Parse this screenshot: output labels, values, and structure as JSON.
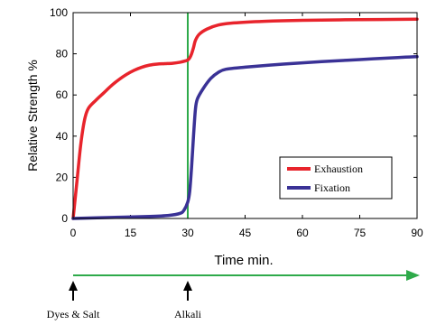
{
  "chart_data": {
    "type": "line",
    "xlabel": "Time min.",
    "ylabel": "Relative Strength %",
    "xlim": [
      0,
      90
    ],
    "ylim": [
      0,
      100
    ],
    "x_ticks": [
      0,
      15,
      30,
      45,
      60,
      75,
      90
    ],
    "y_ticks": [
      0,
      20,
      40,
      60,
      80,
      100
    ],
    "grid": false,
    "legend_position": "right-middle",
    "marker_line": {
      "x": 30,
      "color": "#2eaa4a"
    },
    "series": [
      {
        "name": "Exhaustion",
        "color": "#e8242c",
        "points": [
          [
            0,
            0
          ],
          [
            1,
            18
          ],
          [
            2,
            36
          ],
          [
            3,
            48
          ],
          [
            4,
            53.5
          ],
          [
            6,
            57.5
          ],
          [
            8,
            61
          ],
          [
            10,
            64.5
          ],
          [
            12,
            67.5
          ],
          [
            14,
            70
          ],
          [
            16,
            72
          ],
          [
            18,
            73.5
          ],
          [
            20,
            74.5
          ],
          [
            22,
            75
          ],
          [
            24,
            75.2
          ],
          [
            26,
            75.4
          ],
          [
            28,
            75.9
          ],
          [
            29.5,
            76.6
          ],
          [
            30,
            77
          ],
          [
            30.5,
            78
          ],
          [
            31,
            80
          ],
          [
            31.5,
            83
          ],
          [
            32,
            86.5
          ],
          [
            33,
            89.5
          ],
          [
            35,
            92
          ],
          [
            38,
            94
          ],
          [
            42,
            95
          ],
          [
            50,
            95.8
          ],
          [
            60,
            96.3
          ],
          [
            75,
            96.6
          ],
          [
            90,
            96.8
          ]
        ]
      },
      {
        "name": "Fixation",
        "color": "#3a3296",
        "points": [
          [
            0,
            0
          ],
          [
            10,
            0.5
          ],
          [
            20,
            1
          ],
          [
            25,
            1.5
          ],
          [
            28,
            2.5
          ],
          [
            29,
            4
          ],
          [
            30,
            8
          ],
          [
            30.5,
            13
          ],
          [
            31,
            25
          ],
          [
            31.5,
            40
          ],
          [
            32,
            53
          ],
          [
            32.5,
            58
          ],
          [
            34,
            63
          ],
          [
            36,
            68
          ],
          [
            38,
            71
          ],
          [
            40,
            72.5
          ],
          [
            45,
            73.5
          ],
          [
            55,
            75
          ],
          [
            65,
            76.2
          ],
          [
            75,
            77.2
          ],
          [
            85,
            78.2
          ],
          [
            90,
            78.6
          ]
        ]
      }
    ],
    "timeline": {
      "color": "#2eaa4a",
      "events": [
        {
          "x": 0,
          "label": "Dyes & Salt"
        },
        {
          "x": 30,
          "label": "Alkali"
        }
      ]
    }
  }
}
